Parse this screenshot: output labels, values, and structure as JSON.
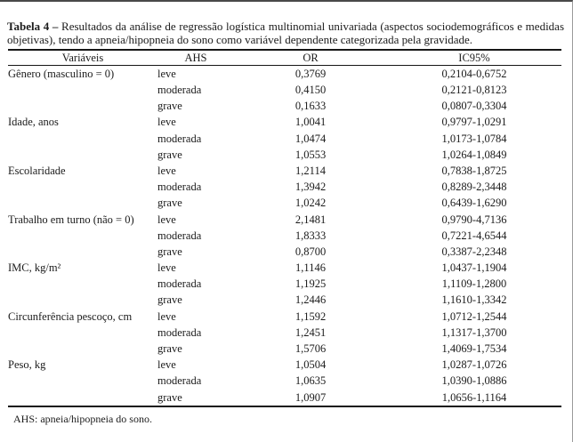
{
  "caption": {
    "label": "Tabela 4 –",
    "text": " Resultados da análise de regressão logística multinomial univariada (aspectos sociodemográficos e medidas objetivas), tendo a apneia/hipopneia do sono como variável dependente categorizada pela gravidade."
  },
  "table": {
    "columns": [
      "Variáveis",
      "AHS",
      "OR",
      "IC95%"
    ],
    "rows": [
      {
        "variable": "Gênero (masculino = 0)",
        "ahs": "leve",
        "or": "0,3769",
        "ic95": "0,2104-0,6752"
      },
      {
        "variable": "",
        "ahs": "moderada",
        "or": "0,4150",
        "ic95": "0,2121-0,8123"
      },
      {
        "variable": "",
        "ahs": "grave",
        "or": "0,1633",
        "ic95": "0,0807-0,3304"
      },
      {
        "variable": "Idade, anos",
        "ahs": "leve",
        "or": "1,0041",
        "ic95": "0,9797-1,0291"
      },
      {
        "variable": "",
        "ahs": "moderada",
        "or": "1,0474",
        "ic95": "1,0173-1,0784"
      },
      {
        "variable": "",
        "ahs": "grave",
        "or": "1,0553",
        "ic95": "1,0264-1,0849"
      },
      {
        "variable": "Escolaridade",
        "ahs": "leve",
        "or": "1,2114",
        "ic95": "0,7838-1,8725"
      },
      {
        "variable": "",
        "ahs": "moderada",
        "or": "1,3942",
        "ic95": "0,8289-2,3448"
      },
      {
        "variable": "",
        "ahs": "grave",
        "or": "1,0242",
        "ic95": "0,6439-1,6290"
      },
      {
        "variable": "Trabalho em turno (não = 0)",
        "ahs": "leve",
        "or": "2,1481",
        "ic95": "0,9790-4,7136"
      },
      {
        "variable": "",
        "ahs": "moderada",
        "or": "1,8333",
        "ic95": "0,7221-4,6544"
      },
      {
        "variable": "",
        "ahs": "grave",
        "or": "0,8700",
        "ic95": "0,3387-2,2348"
      },
      {
        "variable": "IMC, kg/m²",
        "ahs": "leve",
        "or": "1,1146",
        "ic95": "1,0437-1,1904"
      },
      {
        "variable": "",
        "ahs": "moderada",
        "or": "1,1925",
        "ic95": "1,1109-1,2800"
      },
      {
        "variable": "",
        "ahs": "grave",
        "or": "1,2446",
        "ic95": "1,1610-1,3342"
      },
      {
        "variable": "Circunferência pescoço, cm",
        "ahs": "leve",
        "or": "1,1592",
        "ic95": "1,0712-1,2544"
      },
      {
        "variable": "",
        "ahs": "moderada",
        "or": "1,2451",
        "ic95": "1,1317-1,3700"
      },
      {
        "variable": "",
        "ahs": "grave",
        "or": "1,5706",
        "ic95": "1,4069-1,7534"
      },
      {
        "variable": "Peso, kg",
        "ahs": "leve",
        "or": "1,0504",
        "ic95": "1,0287-1,0726"
      },
      {
        "variable": "",
        "ahs": "moderada",
        "or": "1,0635",
        "ic95": "1,0390-1,0886"
      },
      {
        "variable": "",
        "ahs": "grave",
        "or": "1,0907",
        "ic95": "1,0656-1,1164"
      }
    ]
  },
  "footnote": "AHS: apneia/hipopneia do sono."
}
